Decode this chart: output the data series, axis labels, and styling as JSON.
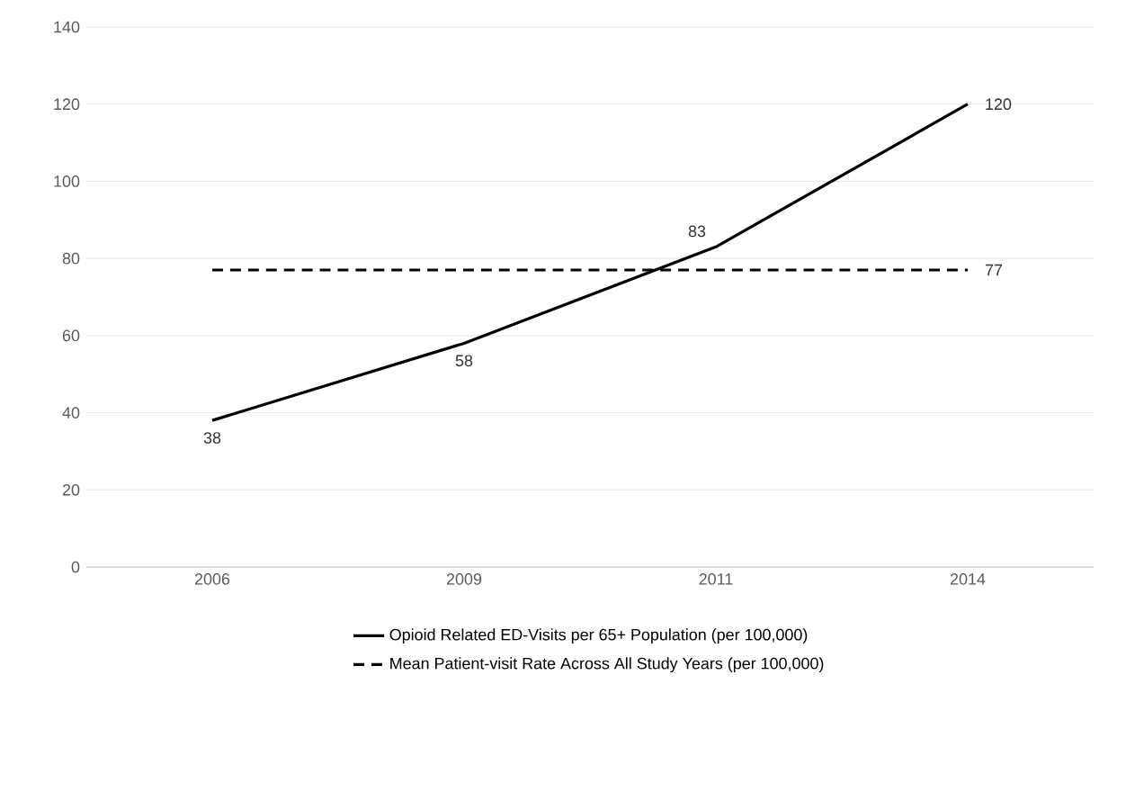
{
  "chart_data": {
    "type": "line",
    "categories": [
      "2006",
      "2009",
      "2011",
      "2014"
    ],
    "series": [
      {
        "name": "Opioid Related ED-Visits per 65+ Population (per 100,000)",
        "color": "#000000",
        "line_style": "solid",
        "values": [
          38,
          58,
          83,
          120
        ],
        "value_labels": [
          "38",
          "58",
          "83",
          "120"
        ]
      },
      {
        "name": "Mean Patient-visit Rate Across All Study Years (per 100,000)",
        "color": "#000000",
        "line_style": "dashed",
        "values": [
          77,
          77,
          77,
          77
        ],
        "value_labels": [
          null,
          null,
          null,
          "77"
        ]
      }
    ],
    "ylim": [
      0,
      140
    ],
    "yticks": [
      0,
      20,
      40,
      60,
      80,
      100,
      120,
      140
    ],
    "grid": "y",
    "legend": "bottom",
    "marker": "none"
  }
}
